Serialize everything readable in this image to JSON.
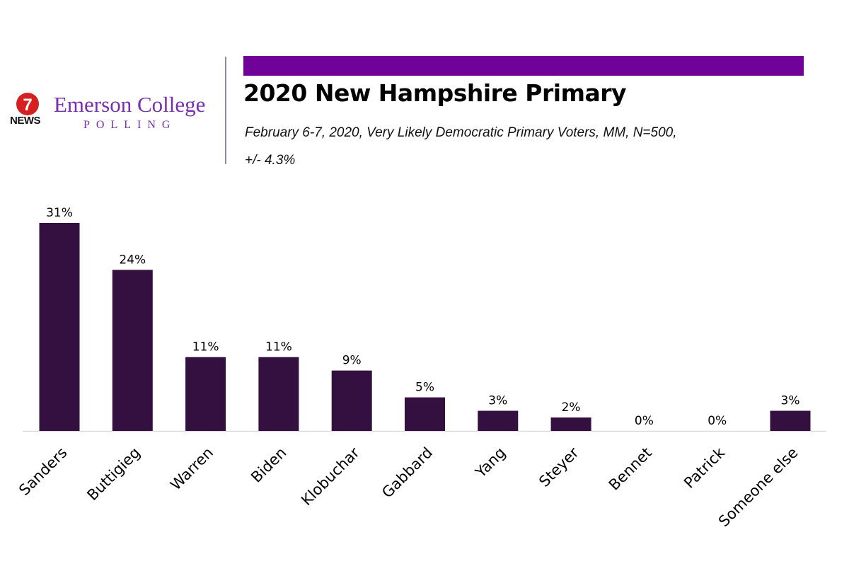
{
  "header": {
    "logo_badge": "7",
    "logo_news": "NEWS",
    "brand_name": "Emerson College",
    "brand_sub": "POLLING",
    "title": "2020 New Hampshire Primary",
    "subtitle_line1": "February 6-7, 2020, Very Likely Democratic Primary Voters, MM,  N=500,",
    "subtitle_line2": "+/-  4.3%"
  },
  "colors": {
    "bar": "#33103f",
    "header_bar": "#700199",
    "brand": "#7a2fb0",
    "axis": "#d9d9d9"
  },
  "chart_data": {
    "type": "bar",
    "title": "2020 New Hampshire Primary",
    "categories": [
      "Sanders",
      "Buttigieg",
      "Warren",
      "Biden",
      "Klobuchar",
      "Gabbard",
      "Yang",
      "Steyer",
      "Bennet",
      "Patrick",
      "Someone else"
    ],
    "values": [
      31,
      24,
      11,
      11,
      9,
      5,
      3,
      2,
      0,
      0,
      3
    ],
    "data_labels": [
      "31%",
      "24%",
      "11%",
      "11%",
      "9%",
      "5%",
      "3%",
      "2%",
      "0%",
      "0%",
      "3%"
    ],
    "ylim": [
      0,
      31
    ],
    "xlabel": "",
    "ylabel": "",
    "grid": false,
    "legend": "none"
  }
}
